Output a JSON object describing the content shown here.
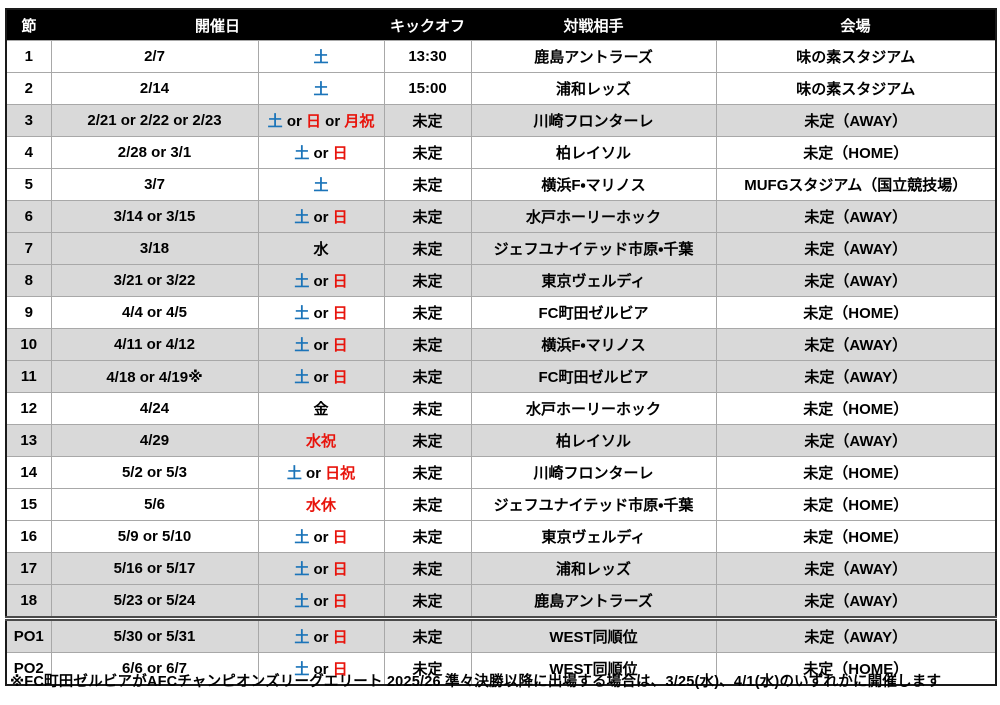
{
  "colors": {
    "accent_blue": "#1b74b9",
    "accent_red": "#e8130b",
    "row_gray": "#d9d9d9",
    "header_bg": "#000000",
    "header_text": "#ffffff"
  },
  "table": {
    "headers": {
      "round": "節",
      "date": "開催日",
      "kickoff": "キックオフ",
      "opponent": "対戦相手",
      "venue": "会場"
    },
    "rows": [
      {
        "round": "1",
        "date": "2/7",
        "day": [
          [
            "土",
            "blue"
          ]
        ],
        "kickoff": "13:30",
        "opponent": "鹿島アントラーズ",
        "venue": "味の素スタジアム",
        "shaded": false,
        "po_divider": false
      },
      {
        "round": "2",
        "date": "2/14",
        "day": [
          [
            "土",
            "blue"
          ]
        ],
        "kickoff": "15:00",
        "opponent": "浦和レッズ",
        "venue": "味の素スタジアム",
        "shaded": false,
        "po_divider": false
      },
      {
        "round": "3",
        "date": "2/21 or 2/22 or 2/23",
        "day": [
          [
            "土",
            "blue"
          ],
          [
            " or ",
            "black"
          ],
          [
            "日",
            "red"
          ],
          [
            " or ",
            "black"
          ],
          [
            "月祝",
            "red"
          ]
        ],
        "kickoff": "未定",
        "opponent": "川崎フロンターレ",
        "venue": "未定（AWAY）",
        "shaded": true,
        "po_divider": false
      },
      {
        "round": "4",
        "date": "2/28 or 3/1",
        "day": [
          [
            "土",
            "blue"
          ],
          [
            " or ",
            "black"
          ],
          [
            "日",
            "red"
          ]
        ],
        "kickoff": "未定",
        "opponent": "柏レイソル",
        "venue": "未定（HOME）",
        "shaded": false,
        "po_divider": false
      },
      {
        "round": "5",
        "date": "3/7",
        "day": [
          [
            "土",
            "blue"
          ]
        ],
        "kickoff": "未定",
        "opponent": "横浜F・マリノス",
        "venue": "MUFGスタジアム（国立競技場）",
        "shaded": false,
        "po_divider": false
      },
      {
        "round": "6",
        "date": "3/14 or 3/15",
        "day": [
          [
            "土",
            "blue"
          ],
          [
            " or ",
            "black"
          ],
          [
            "日",
            "red"
          ]
        ],
        "kickoff": "未定",
        "opponent": "水戸ホーリーホック",
        "venue": "未定（AWAY）",
        "shaded": true,
        "po_divider": false
      },
      {
        "round": "7",
        "date": "3/18",
        "day": [
          [
            "水",
            "black"
          ]
        ],
        "kickoff": "未定",
        "opponent": "ジェフユナイテッド市原・千葉",
        "venue": "未定（AWAY）",
        "shaded": true,
        "po_divider": false
      },
      {
        "round": "8",
        "date": "3/21 or 3/22",
        "day": [
          [
            "土",
            "blue"
          ],
          [
            " or ",
            "black"
          ],
          [
            "日",
            "red"
          ]
        ],
        "kickoff": "未定",
        "opponent": "東京ヴェルディ",
        "venue": "未定（AWAY）",
        "shaded": true,
        "po_divider": false
      },
      {
        "round": "9",
        "date": "4/4 or 4/5",
        "day": [
          [
            "土",
            "blue"
          ],
          [
            " or ",
            "black"
          ],
          [
            "日",
            "red"
          ]
        ],
        "kickoff": "未定",
        "opponent": "FC町田ゼルビア",
        "venue": "未定（HOME）",
        "shaded": false,
        "po_divider": false
      },
      {
        "round": "10",
        "date": "4/11 or 4/12",
        "day": [
          [
            "土",
            "blue"
          ],
          [
            " or ",
            "black"
          ],
          [
            "日",
            "red"
          ]
        ],
        "kickoff": "未定",
        "opponent": "横浜F・マリノス",
        "venue": "未定（AWAY）",
        "shaded": true,
        "po_divider": false
      },
      {
        "round": "11",
        "date": "4/18 or 4/19※",
        "day": [
          [
            "土",
            "blue"
          ],
          [
            " or ",
            "black"
          ],
          [
            "日",
            "red"
          ]
        ],
        "kickoff": "未定",
        "opponent": "FC町田ゼルビア",
        "venue": "未定（AWAY）",
        "shaded": true,
        "po_divider": false
      },
      {
        "round": "12",
        "date": "4/24",
        "day": [
          [
            "金",
            "black"
          ]
        ],
        "kickoff": "未定",
        "opponent": "水戸ホーリーホック",
        "venue": "未定（HOME）",
        "shaded": false,
        "po_divider": false
      },
      {
        "round": "13",
        "date": "4/29",
        "day": [
          [
            "水祝",
            "red"
          ]
        ],
        "kickoff": "未定",
        "opponent": "柏レイソル",
        "venue": "未定（AWAY）",
        "shaded": true,
        "po_divider": false
      },
      {
        "round": "14",
        "date": "5/2 or 5/3",
        "day": [
          [
            "土",
            "blue"
          ],
          [
            " or ",
            "black"
          ],
          [
            "日祝",
            "red"
          ]
        ],
        "kickoff": "未定",
        "opponent": "川崎フロンターレ",
        "venue": "未定（HOME）",
        "shaded": false,
        "po_divider": false
      },
      {
        "round": "15",
        "date": "5/6",
        "day": [
          [
            "水休",
            "red"
          ]
        ],
        "kickoff": "未定",
        "opponent": "ジェフユナイテッド市原・千葉",
        "venue": "未定（HOME）",
        "shaded": false,
        "po_divider": false
      },
      {
        "round": "16",
        "date": "5/9 or 5/10",
        "day": [
          [
            "土",
            "blue"
          ],
          [
            " or ",
            "black"
          ],
          [
            "日",
            "red"
          ]
        ],
        "kickoff": "未定",
        "opponent": "東京ヴェルディ",
        "venue": "未定（HOME）",
        "shaded": false,
        "po_divider": false
      },
      {
        "round": "17",
        "date": "5/16 or 5/17",
        "day": [
          [
            "土",
            "blue"
          ],
          [
            " or ",
            "black"
          ],
          [
            "日",
            "red"
          ]
        ],
        "kickoff": "未定",
        "opponent": "浦和レッズ",
        "venue": "未定（AWAY）",
        "shaded": true,
        "po_divider": false
      },
      {
        "round": "18",
        "date": "5/23 or 5/24",
        "day": [
          [
            "土",
            "blue"
          ],
          [
            " or ",
            "black"
          ],
          [
            "日",
            "red"
          ]
        ],
        "kickoff": "未定",
        "opponent": "鹿島アントラーズ",
        "venue": "未定（AWAY）",
        "shaded": true,
        "po_divider": false
      },
      {
        "round": "PO1",
        "date": "5/30 or 5/31",
        "day": [
          [
            "土",
            "blue"
          ],
          [
            " or ",
            "black"
          ],
          [
            "日",
            "red"
          ]
        ],
        "kickoff": "未定",
        "opponent": "WEST同順位",
        "venue": "未定（AWAY）",
        "shaded": true,
        "po_divider": true
      },
      {
        "round": "PO2",
        "date": "6/6 or 6/7",
        "day": [
          [
            "土",
            "blue"
          ],
          [
            " or ",
            "black"
          ],
          [
            "日",
            "red"
          ]
        ],
        "kickoff": "未定",
        "opponent": "WEST同順位",
        "venue": "未定（HOME）",
        "shaded": false,
        "po_divider": false
      }
    ]
  },
  "footnote": "※FC町田ゼルビアがAFCチャンピオンズリーグエリート 2025/26 準々決勝以降に出場する場合は、3/25(水)、4/1(水)のいずれかに開催します"
}
